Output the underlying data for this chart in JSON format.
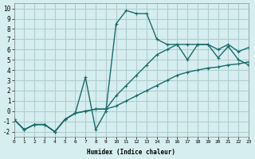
{
  "xlabel": "Humidex (Indice chaleur)",
  "bg_color": "#d6eef0",
  "grid_color": "#b0cdd0",
  "line_color": "#1a6b6b",
  "line1": {
    "x": [
      0,
      1,
      2,
      3,
      4,
      5,
      6,
      7,
      8,
      9,
      10,
      11,
      12,
      13,
      14,
      15,
      16,
      17,
      18,
      19,
      20,
      21,
      22,
      23
    ],
    "y": [
      -0.8,
      -1.8,
      -1.3,
      -1.3,
      -2.0,
      -0.8,
      -0.2,
      0.0,
      0.2,
      0.2,
      0.5,
      1.0,
      1.5,
      2.0,
      2.5,
      3.0,
      3.5,
      3.8,
      4.0,
      4.2,
      4.3,
      4.5,
      4.6,
      4.8
    ]
  },
  "line2": {
    "x": [
      0,
      1,
      2,
      3,
      4,
      5,
      6,
      7,
      8,
      9,
      10,
      11,
      12,
      13,
      14,
      15,
      16,
      17,
      18,
      19,
      20,
      21,
      22,
      23
    ],
    "y": [
      -0.8,
      -1.8,
      -1.3,
      -1.3,
      -2.0,
      -0.8,
      -0.2,
      3.3,
      -1.8,
      0.0,
      8.5,
      9.8,
      9.5,
      9.5,
      7.0,
      6.5,
      6.5,
      5.0,
      6.5,
      6.5,
      5.2,
      6.3,
      5.0,
      4.5
    ]
  },
  "line3": {
    "x": [
      0,
      1,
      2,
      3,
      4,
      5,
      6,
      7,
      8,
      9,
      10,
      11,
      12,
      13,
      14,
      15,
      16,
      17,
      18,
      19,
      20,
      21,
      22,
      23
    ],
    "y": [
      -0.8,
      -1.8,
      -1.3,
      -1.3,
      -2.0,
      -0.8,
      -0.2,
      0.0,
      0.2,
      0.2,
      1.5,
      2.5,
      3.5,
      4.5,
      5.5,
      6.0,
      6.5,
      6.5,
      6.5,
      6.5,
      6.0,
      6.5,
      5.8,
      6.2
    ]
  },
  "xlim": [
    0,
    23
  ],
  "ylim": [
    -2.5,
    10.5
  ],
  "yticks": [
    -2,
    -1,
    0,
    1,
    2,
    3,
    4,
    5,
    6,
    7,
    8,
    9,
    10
  ],
  "xticks": [
    0,
    1,
    2,
    3,
    4,
    5,
    6,
    7,
    8,
    9,
    10,
    11,
    12,
    13,
    14,
    15,
    16,
    17,
    18,
    19,
    20,
    21,
    22,
    23
  ]
}
